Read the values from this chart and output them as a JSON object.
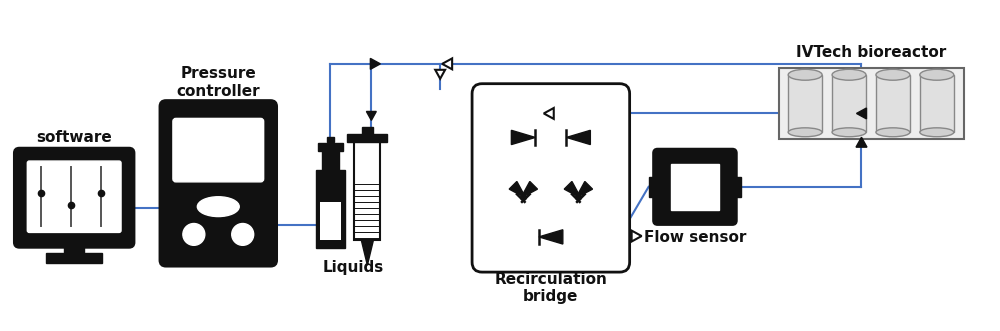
{
  "bg_color": "#ffffff",
  "line_color": "#4472C4",
  "black": "#111111",
  "light_gray": "#d8d8d8",
  "labels": {
    "software": "software",
    "pressure": "Pressure\ncontroller",
    "liquids": "Liquids",
    "recirculation": "Recirculation\nbridge",
    "flow_sensor": "Flow sensor",
    "ivtech": "IVTech bioreactor"
  },
  "label_fontsize": 11,
  "figsize": [
    10.0,
    3.31
  ],
  "dpi": 100
}
